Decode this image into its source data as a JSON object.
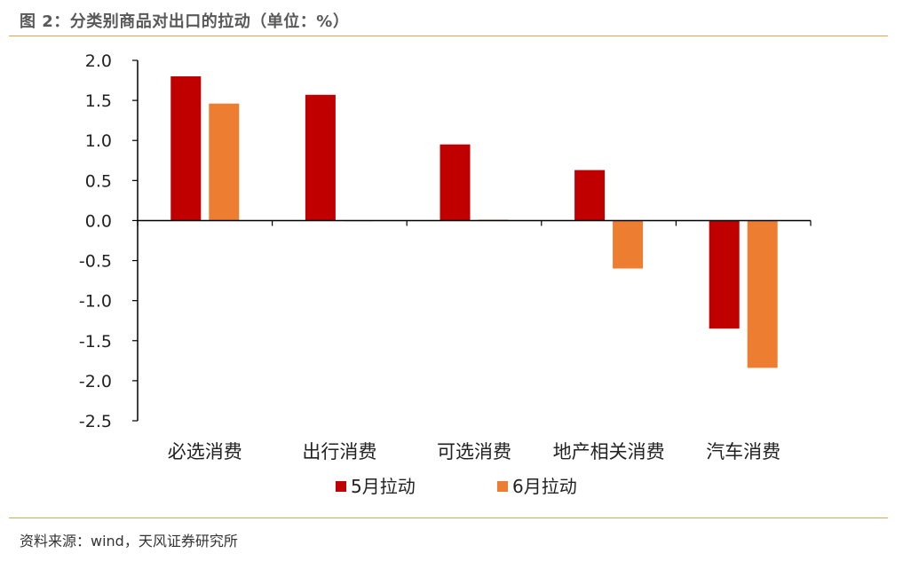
{
  "header": {
    "title": "图 2：分类别商品对出口的拉动（单位：%）"
  },
  "footer": {
    "source": "资料来源：wind，天风证券研究所"
  },
  "colors": {
    "series1": "#c00000",
    "series2": "#ed7d31",
    "axis": "#000000",
    "rule": "#e3a64f"
  },
  "chart_data": {
    "type": "bar",
    "title": "",
    "xlabel": "",
    "ylabel": "",
    "categories": [
      "必选消费",
      "出行消费",
      "可选消费",
      "地产相关消费",
      "汽车消费"
    ],
    "series": [
      {
        "name": "5月拉动",
        "values": [
          1.8,
          1.57,
          0.95,
          0.63,
          -1.35
        ]
      },
      {
        "name": "6月拉动",
        "values": [
          1.46,
          0.0,
          0.01,
          -0.6,
          -1.84
        ]
      }
    ],
    "ylim": [
      -2.5,
      2.0
    ],
    "yticks": [
      "2.0",
      "1.5",
      "1.0",
      "0.5",
      "0.0",
      "-0.5",
      "-1.0",
      "-1.5",
      "-2.0",
      "-2.5"
    ],
    "grid": false,
    "legend": "bottom-center"
  }
}
